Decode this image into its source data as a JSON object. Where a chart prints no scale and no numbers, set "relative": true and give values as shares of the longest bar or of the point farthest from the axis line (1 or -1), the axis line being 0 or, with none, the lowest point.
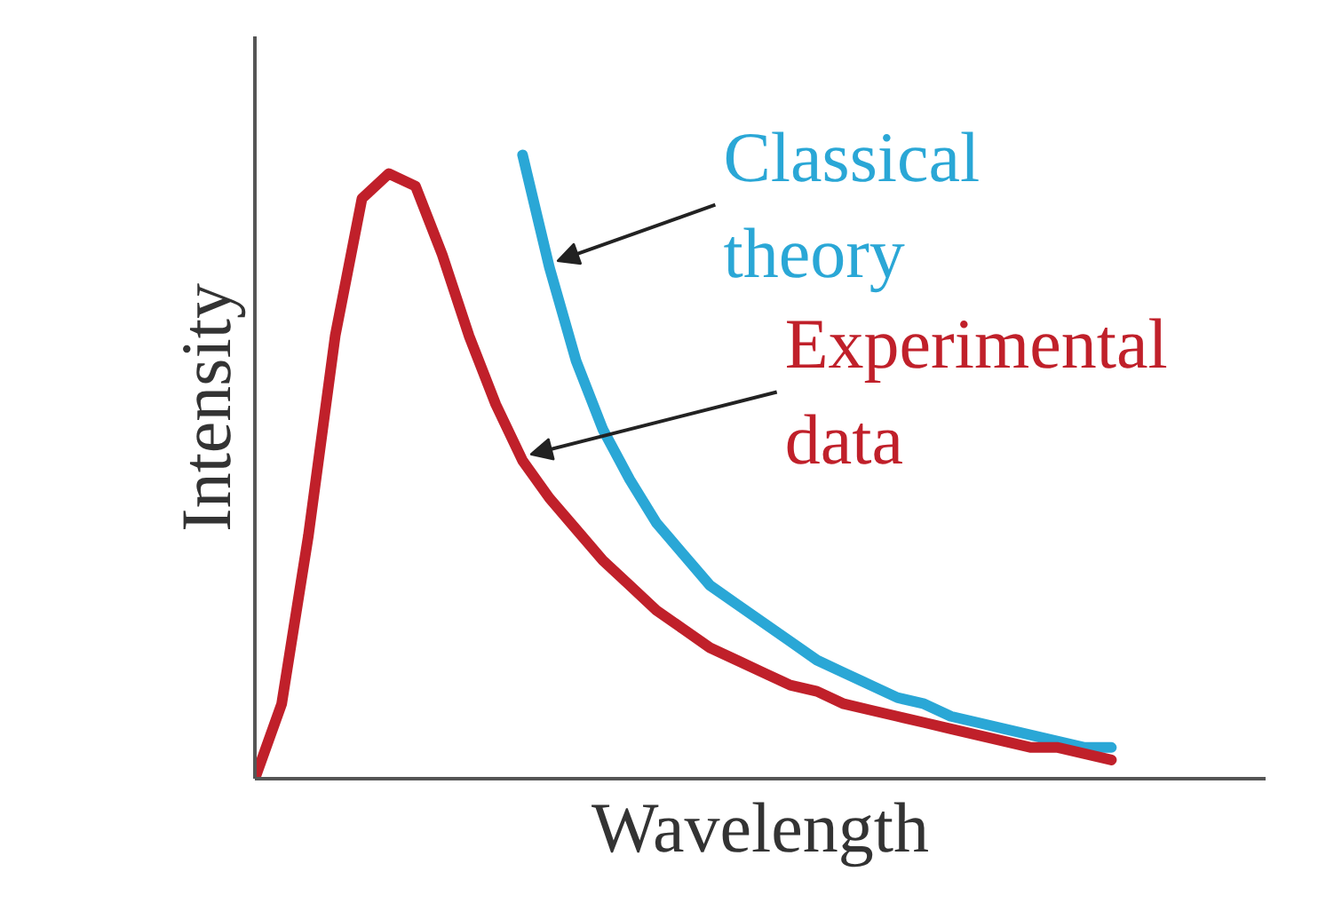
{
  "chart_data": {
    "type": "line",
    "relative": true,
    "xlabel": "Wavelength",
    "ylabel": "Intensity",
    "legend": false,
    "categories": [
      null,
      null,
      null,
      null,
      null,
      null,
      null,
      null,
      null,
      null,
      null,
      null,
      null,
      null,
      null,
      null,
      null,
      null,
      null,
      null,
      null,
      null,
      null,
      null,
      null,
      null,
      null,
      null,
      null,
      null,
      null,
      null,
      null
    ],
    "series": [
      {
        "name": "Classical theory",
        "color": "#2aa7d6",
        "values": [
          null,
          null,
          null,
          null,
          null,
          null,
          null,
          null,
          null,
          null,
          1.0,
          0.82,
          0.67,
          0.56,
          0.48,
          0.41,
          0.36,
          0.31,
          0.28,
          0.25,
          0.22,
          0.19,
          0.17,
          0.15,
          0.13,
          0.12,
          0.1,
          0.09,
          0.08,
          0.07,
          0.06,
          0.05,
          0.05
        ]
      },
      {
        "name": "Experimental data",
        "color": "#c0202a",
        "values": [
          0,
          0.12,
          0.39,
          0.71,
          0.93,
          0.97,
          0.95,
          0.84,
          0.71,
          0.6,
          0.51,
          0.45,
          0.4,
          0.35,
          0.31,
          0.27,
          0.24,
          0.21,
          0.19,
          0.17,
          0.15,
          0.14,
          0.12,
          0.11,
          0.1,
          0.09,
          0.08,
          0.07,
          0.06,
          0.05,
          0.05,
          0.04,
          0.03
        ]
      }
    ]
  }
}
